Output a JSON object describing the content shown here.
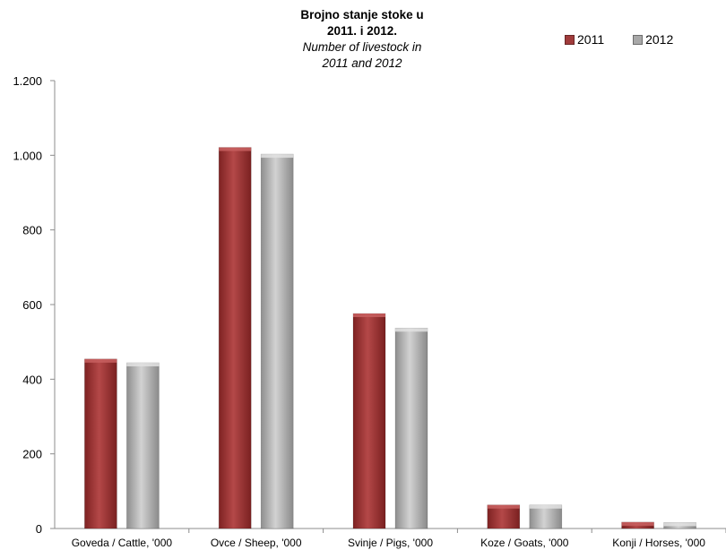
{
  "chart_data": {
    "type": "bar",
    "title": "Brojno stanje stoke  u",
    "title_line2": "2011. i 2012.",
    "subtitle": "Number of livestock in",
    "subtitle_line2": "2011 and 2012",
    "xlabel": "",
    "ylabel": "",
    "ylim": [
      0,
      1200
    ],
    "yticks": [
      0,
      200,
      400,
      600,
      800,
      1000,
      1200
    ],
    "ytick_labels": [
      "0",
      "200",
      "400",
      "600",
      "800",
      "1.000",
      "1.200"
    ],
    "grid": false,
    "legend_position": "top-right",
    "categories": [
      "Goveda / Cattle, '000",
      "Ovce / Sheep, '000",
      "Svinje / Pigs, '000",
      "Koze / Goats, '000",
      "Konji / Horses, '000"
    ],
    "series": [
      {
        "name": "2011",
        "color": "#a03b3b",
        "values": [
          454,
          1021,
          576,
          63,
          17
        ]
      },
      {
        "name": "2012",
        "color": "#a8a8a8",
        "values": [
          444,
          1003,
          537,
          63,
          16
        ]
      }
    ]
  }
}
